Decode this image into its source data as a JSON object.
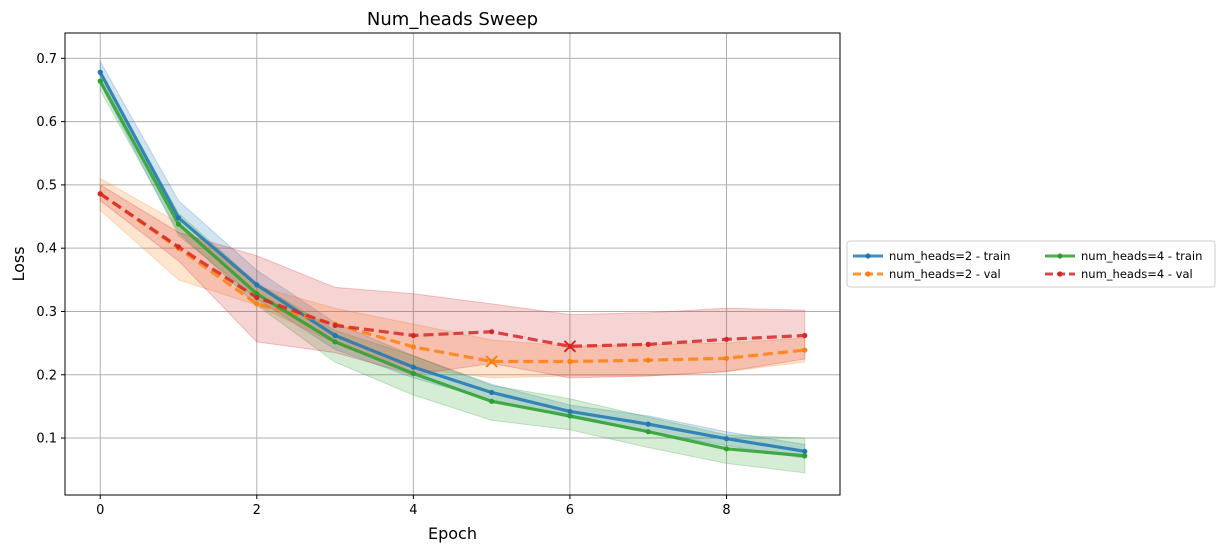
{
  "chart_data": {
    "type": "line",
    "title": "Num_heads Sweep",
    "xlabel": "Epoch",
    "ylabel": "Loss",
    "xlim": [
      -0.45,
      9.45
    ],
    "ylim": [
      0.01,
      0.74
    ],
    "xticks": [
      0,
      2,
      4,
      6,
      8
    ],
    "yticks": [
      0.1,
      0.2,
      0.3,
      0.4,
      0.5,
      0.6,
      0.7
    ],
    "xtick_labels": [
      "0",
      "2",
      "4",
      "6",
      "8"
    ],
    "ytick_labels": [
      "0.1",
      "0.2",
      "0.3",
      "0.4",
      "0.5",
      "0.6",
      "0.7"
    ],
    "grid": true,
    "legend_position": "right",
    "x": [
      0,
      1,
      2,
      3,
      4,
      5,
      6,
      7,
      8,
      9
    ],
    "series": [
      {
        "name": "num_heads=2 - train",
        "color": "#1f77b4",
        "style": "solid",
        "values": [
          0.678,
          0.448,
          0.342,
          0.262,
          0.212,
          0.172,
          0.142,
          0.122,
          0.099,
          0.079
        ],
        "lower": [
          0.66,
          0.42,
          0.32,
          0.24,
          0.195,
          0.16,
          0.132,
          0.11,
          0.088,
          0.068
        ],
        "upper": [
          0.695,
          0.475,
          0.365,
          0.282,
          0.23,
          0.185,
          0.152,
          0.135,
          0.11,
          0.09
        ],
        "min_marker": null
      },
      {
        "name": "num_heads=2 - val",
        "color": "#ff7f0e",
        "style": "dashed",
        "values": [
          0.486,
          0.4,
          0.312,
          0.28,
          0.244,
          0.221,
          0.221,
          0.223,
          0.226,
          0.239
        ],
        "lower": [
          0.46,
          0.35,
          0.31,
          0.25,
          0.21,
          0.195,
          0.198,
          0.198,
          0.205,
          0.22
        ],
        "upper": [
          0.51,
          0.44,
          0.34,
          0.305,
          0.28,
          0.255,
          0.245,
          0.248,
          0.25,
          0.258
        ],
        "min_marker": 5
      },
      {
        "name": "num_heads=4 - train",
        "color": "#2ca02c",
        "style": "solid",
        "values": [
          0.664,
          0.438,
          0.328,
          0.252,
          0.202,
          0.158,
          0.135,
          0.11,
          0.083,
          0.072
        ],
        "lower": [
          0.65,
          0.425,
          0.31,
          0.22,
          0.168,
          0.128,
          0.113,
          0.085,
          0.06,
          0.045
        ],
        "upper": [
          0.68,
          0.455,
          0.345,
          0.27,
          0.23,
          0.183,
          0.162,
          0.133,
          0.105,
          0.1
        ],
        "min_marker": null
      },
      {
        "name": "num_heads=4 - val",
        "color": "#d62728",
        "style": "dashed",
        "values": [
          0.486,
          0.402,
          0.322,
          0.278,
          0.262,
          0.268,
          0.245,
          0.248,
          0.256,
          0.262
        ],
        "lower": [
          0.475,
          0.38,
          0.252,
          0.235,
          0.2,
          0.218,
          0.195,
          0.198,
          0.205,
          0.225
        ],
        "upper": [
          0.5,
          0.425,
          0.388,
          0.338,
          0.328,
          0.312,
          0.295,
          0.298,
          0.305,
          0.302
        ],
        "min_marker": 6
      }
    ]
  }
}
